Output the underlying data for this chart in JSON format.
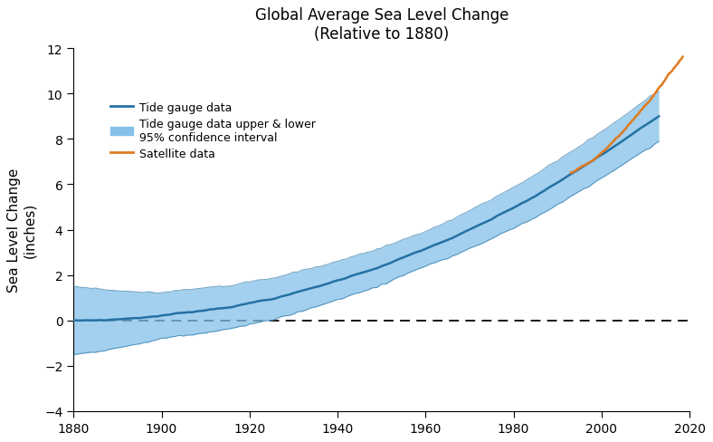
{
  "title_line1": "Global Average Sea Level Change",
  "title_line2": "(Relative to 1880)",
  "ylabel_line1": "Sea Level Change",
  "ylabel_line2": "(inches)",
  "xlim": [
    1880,
    2020
  ],
  "ylim": [
    -4,
    12
  ],
  "yticks": [
    -4,
    -2,
    0,
    2,
    4,
    6,
    8,
    10,
    12
  ],
  "xticks": [
    1880,
    1900,
    1920,
    1940,
    1960,
    1980,
    2000,
    2020
  ],
  "tide_color": "#2471a3",
  "fill_color": "#85c1e9",
  "satellite_color": "#e07b20",
  "background_color": "#ffffff",
  "tide_linewidth": 1.8,
  "satellite_linewidth": 1.8
}
